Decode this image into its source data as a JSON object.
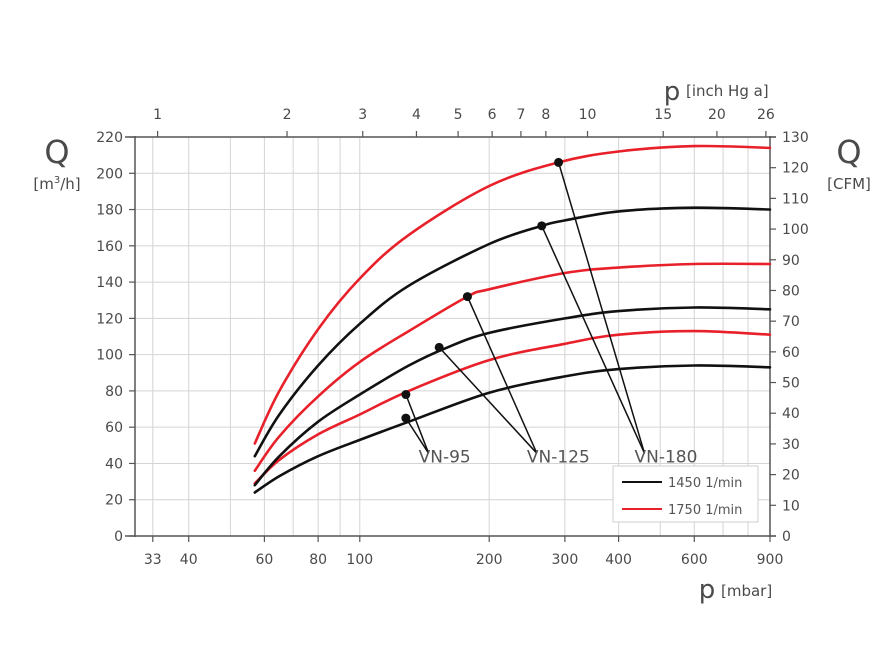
{
  "chart_data": {
    "type": "line",
    "x_axis": {
      "symbol": "p",
      "unit": "[mbar]",
      "scale": "log",
      "range": [
        30,
        900
      ],
      "ticks": [
        33,
        40,
        60,
        80,
        100,
        200,
        300,
        400,
        600,
        900
      ],
      "gridlines": [
        33,
        40,
        50,
        60,
        70,
        80,
        90,
        100,
        200,
        300,
        400,
        500,
        600,
        700,
        800,
        900
      ]
    },
    "x2_axis": {
      "symbol": "p",
      "unit": "[inch Hg a]",
      "ticks": [
        1,
        2,
        3,
        4,
        5,
        6,
        7,
        8,
        10,
        15,
        20,
        26
      ]
    },
    "y_axis": {
      "symbol": "Q",
      "unit_base": "[m",
      "unit_sup": "3",
      "unit_end": "/h]",
      "range": [
        0,
        220
      ],
      "ticks": [
        0,
        20,
        40,
        60,
        80,
        100,
        120,
        140,
        160,
        180,
        200,
        220
      ]
    },
    "y2_axis": {
      "symbol": "Q",
      "unit": "[CFM]",
      "range": [
        0,
        130
      ],
      "ticks": [
        0,
        10,
        20,
        30,
        40,
        50,
        60,
        70,
        80,
        90,
        100,
        110,
        120,
        130
      ]
    },
    "grid": true,
    "legend": {
      "position": "bottom-right",
      "entries": [
        {
          "label": "1450 1/min",
          "color": "#111111"
        },
        {
          "label": "1750 1/min",
          "color": "#e8202a"
        }
      ]
    },
    "series": [
      {
        "model": "VN-95",
        "speed": "1450 1/min",
        "color": "#111111",
        "x": [
          57,
          65,
          80,
          100,
          130,
          200,
          300,
          400,
          600,
          900
        ],
        "y": [
          24,
          33,
          44,
          53,
          63,
          79,
          88,
          92,
          94,
          93
        ]
      },
      {
        "model": "VN-95",
        "speed": "1750 1/min",
        "color": "#e8202a",
        "x": [
          57,
          65,
          80,
          100,
          130,
          200,
          300,
          400,
          600,
          900
        ],
        "y": [
          29,
          42,
          56,
          67,
          80,
          97,
          106,
          111,
          113,
          111
        ]
      },
      {
        "model": "VN-125",
        "speed": "1450 1/min",
        "color": "#111111",
        "x": [
          57,
          65,
          80,
          100,
          130,
          160,
          200,
          300,
          400,
          600,
          900
        ],
        "y": [
          28,
          44,
          63,
          78,
          94,
          104,
          112,
          120,
          124,
          126,
          125
        ]
      },
      {
        "model": "VN-125",
        "speed": "1750 1/min",
        "color": "#e8202a",
        "x": [
          57,
          65,
          80,
          100,
          130,
          178,
          200,
          300,
          400,
          600,
          900
        ],
        "y": [
          36,
          55,
          77,
          96,
          113,
          132,
          136,
          145,
          148,
          150,
          150
        ]
      },
      {
        "model": "VN-180",
        "speed": "1450 1/min",
        "color": "#111111",
        "x": [
          57,
          65,
          80,
          100,
          130,
          200,
          265,
          300,
          400,
          600,
          900
        ],
        "y": [
          44,
          67,
          94,
          117,
          138,
          161,
          171,
          174,
          179,
          181,
          180
        ]
      },
      {
        "model": "VN-180",
        "speed": "1750 1/min",
        "color": "#e8202a",
        "x": [
          57,
          65,
          80,
          100,
          130,
          200,
          290,
          400,
          600,
          900
        ],
        "y": [
          51,
          80,
          114,
          142,
          166,
          193,
          206,
          212,
          215,
          214
        ]
      }
    ],
    "rated_points": [
      {
        "x": 128,
        "y": 65,
        "label": "VN-95"
      },
      {
        "x": 128,
        "y": 78,
        "label": "VN-95"
      },
      {
        "x": 153,
        "y": 104,
        "label": "VN-125"
      },
      {
        "x": 178,
        "y": 132,
        "label": "VN-125"
      },
      {
        "x": 265,
        "y": 171,
        "label": "VN-180"
      },
      {
        "x": 290,
        "y": 206,
        "label": "VN-180"
      }
    ],
    "model_labels": [
      {
        "text": "VN-95",
        "x": 140,
        "y": 50
      },
      {
        "text": "VN-125",
        "x": 250,
        "y": 50
      },
      {
        "text": "VN-180",
        "x": 445,
        "y": 50
      }
    ]
  }
}
